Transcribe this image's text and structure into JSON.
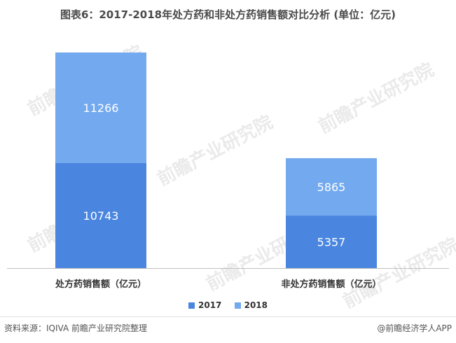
{
  "title": "图表6：2017-2018年处方药和非处方药销售额对比分析 (单位：亿元)",
  "chart_data": {
    "type": "bar",
    "stacked": true,
    "categories": [
      "处方药销售额（亿元）",
      "非处方药销售额（亿元）"
    ],
    "series": [
      {
        "name": "2017",
        "values": [
          10743,
          5357
        ],
        "color": "#4A86E0"
      },
      {
        "name": "2018",
        "values": [
          11266,
          5865
        ],
        "color": "#73A9EE"
      }
    ],
    "ylim": [
      0,
      22009
    ],
    "grid": false,
    "legend_position": "bottom"
  },
  "legend": {
    "items": [
      "2017",
      "2018"
    ]
  },
  "footer": {
    "source": "资料来源：IQIVA 前瞻产业研究院整理",
    "brand": "@前瞻经济学人APP"
  },
  "watermark": {
    "text": "前瞻产业研究院"
  }
}
